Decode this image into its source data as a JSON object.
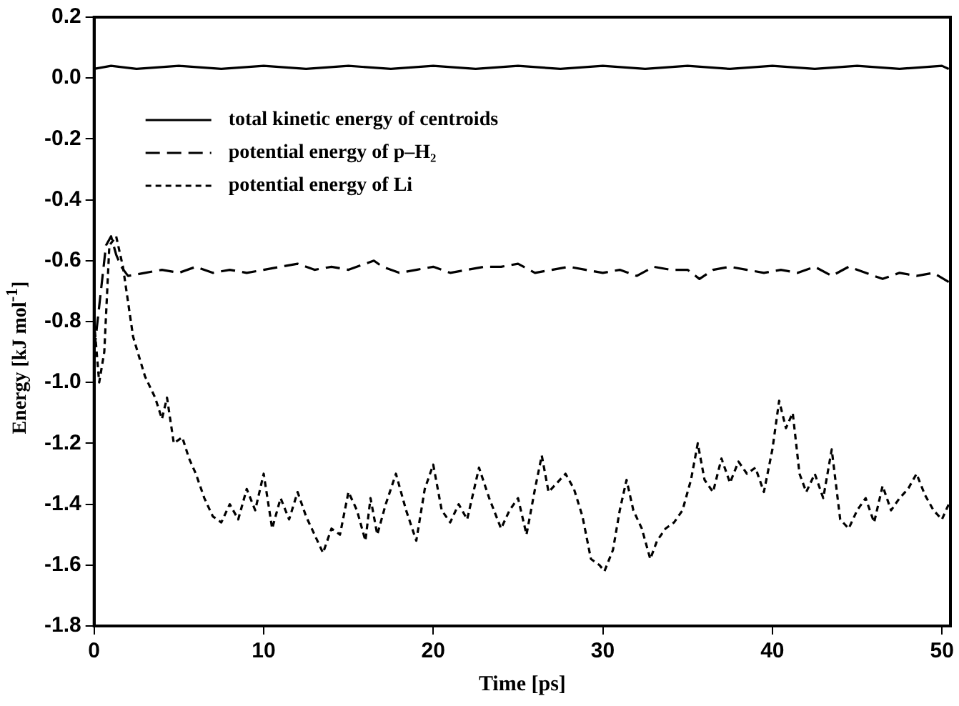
{
  "chart_data": {
    "type": "line",
    "xlabel": "Time [ps]",
    "ylabel": "Energy [kJ mol$^{-1}$]",
    "xlim": [
      0,
      50.5
    ],
    "xticks": [
      0,
      10,
      20,
      30,
      40,
      50
    ],
    "ylim": [
      -1.8,
      0.2
    ],
    "yticks": [
      {
        "value": 0.2,
        "label": "0.2"
      },
      {
        "value": 0,
        "label": "0.0"
      },
      {
        "value": -0.2,
        "label": "-0.2"
      },
      {
        "value": -0.4,
        "label": "-0.4"
      },
      {
        "value": -0.6,
        "label": "-0.6"
      },
      {
        "value": -0.8,
        "label": "-0.8"
      },
      {
        "value": -1,
        "label": "-1.0"
      },
      {
        "value": -1.2,
        "label": "-1.2"
      },
      {
        "value": -1.4,
        "label": "-1.4"
      },
      {
        "value": -1.6,
        "label": "-1.6"
      },
      {
        "value": -1.8,
        "label": "-1.8"
      }
    ],
    "grid": false,
    "legend": "top left",
    "marker": "none",
    "series": [
      {
        "name": "total kinetic energy of centroids",
        "color": "#000000",
        "line_style": "solid",
        "x": [
          0,
          1,
          2.5,
          5,
          7.5,
          10,
          12.5,
          15,
          17.5,
          20,
          22.5,
          25,
          27.5,
          30,
          32.5,
          35,
          37.5,
          40,
          42.5,
          45,
          47.5,
          50,
          50.4
        ],
        "values": [
          0.03,
          0.04,
          0.03,
          0.04,
          0.03,
          0.04,
          0.03,
          0.04,
          0.03,
          0.04,
          0.03,
          0.04,
          0.03,
          0.04,
          0.03,
          0.04,
          0.03,
          0.04,
          0.03,
          0.04,
          0.03,
          0.04,
          0.03
        ]
      },
      {
        "name": "potential energy of p–H₂",
        "color": "#000000",
        "line_style": "dashed",
        "x": [
          0,
          0.3,
          0.7,
          1,
          1.3,
          1.6,
          2,
          3,
          4,
          5,
          6,
          7,
          8,
          9,
          10,
          11,
          12,
          13,
          14,
          15,
          16,
          16.5,
          17,
          18,
          19,
          20,
          21,
          22,
          23,
          24,
          25,
          26,
          27,
          28,
          29,
          30,
          31,
          32,
          33,
          34,
          35,
          35.7,
          36.5,
          37.5,
          38.5,
          39.5,
          40.5,
          41.5,
          42.5,
          43.5,
          44.5,
          45.5,
          46.5,
          47.5,
          48.5,
          49.5,
          50.4
        ],
        "values": [
          -0.9,
          -0.75,
          -0.55,
          -0.52,
          -0.58,
          -0.62,
          -0.65,
          -0.64,
          -0.63,
          -0.64,
          -0.62,
          -0.64,
          -0.63,
          -0.64,
          -0.63,
          -0.62,
          -0.61,
          -0.63,
          -0.62,
          -0.63,
          -0.61,
          -0.6,
          -0.62,
          -0.64,
          -0.63,
          -0.62,
          -0.64,
          -0.63,
          -0.62,
          -0.62,
          -0.61,
          -0.64,
          -0.63,
          -0.62,
          -0.63,
          -0.64,
          -0.63,
          -0.65,
          -0.62,
          -0.63,
          -0.63,
          -0.66,
          -0.63,
          -0.62,
          -0.63,
          -0.64,
          -0.63,
          -0.64,
          -0.62,
          -0.65,
          -0.62,
          -0.64,
          -0.66,
          -0.64,
          -0.65,
          -0.64,
          -0.67
        ]
      },
      {
        "name": "potential energy of Li",
        "color": "#000000",
        "line_style": "dotted",
        "x": [
          0,
          0.3,
          0.6,
          0.9,
          1.3,
          1.7,
          2.3,
          3,
          3.6,
          4,
          4.3,
          4.7,
          5.2,
          5.6,
          6,
          6.5,
          7,
          7.5,
          8,
          8.5,
          9,
          9.5,
          10,
          10.5,
          11,
          11.5,
          12,
          12.5,
          13,
          13.5,
          14,
          14.5,
          15,
          15.5,
          16,
          16.3,
          16.7,
          17.2,
          17.8,
          18.4,
          19,
          19.5,
          20,
          20.5,
          21,
          21.5,
          22,
          22.7,
          23.3,
          24,
          24.5,
          25,
          25.5,
          26,
          26.4,
          26.8,
          27.3,
          27.8,
          28.3,
          28.8,
          29.3,
          29.8,
          30.1,
          30.6,
          31,
          31.4,
          31.8,
          32.3,
          32.8,
          33.2,
          33.7,
          34.2,
          34.7,
          35.2,
          35.6,
          36,
          36.5,
          37,
          37.5,
          38,
          38.5,
          39,
          39.5,
          40,
          40.4,
          40.8,
          41.2,
          41.6,
          42,
          42.5,
          43,
          43.5,
          44,
          44.5,
          45,
          45.5,
          46,
          46.5,
          47,
          47.5,
          48,
          48.5,
          49,
          49.5,
          50,
          50.4
        ],
        "values": [
          -0.8,
          -1.0,
          -0.9,
          -0.55,
          -0.52,
          -0.62,
          -0.85,
          -0.98,
          -1.05,
          -1.12,
          -1.05,
          -1.2,
          -1.18,
          -1.25,
          -1.3,
          -1.38,
          -1.44,
          -1.46,
          -1.4,
          -1.45,
          -1.35,
          -1.42,
          -1.3,
          -1.48,
          -1.38,
          -1.45,
          -1.36,
          -1.44,
          -1.5,
          -1.56,
          -1.48,
          -1.5,
          -1.36,
          -1.42,
          -1.52,
          -1.38,
          -1.5,
          -1.4,
          -1.3,
          -1.42,
          -1.52,
          -1.35,
          -1.27,
          -1.42,
          -1.46,
          -1.4,
          -1.45,
          -1.28,
          -1.38,
          -1.48,
          -1.42,
          -1.38,
          -1.5,
          -1.35,
          -1.24,
          -1.36,
          -1.33,
          -1.3,
          -1.35,
          -1.44,
          -1.58,
          -1.6,
          -1.62,
          -1.55,
          -1.42,
          -1.32,
          -1.42,
          -1.48,
          -1.58,
          -1.52,
          -1.48,
          -1.46,
          -1.42,
          -1.32,
          -1.2,
          -1.32,
          -1.36,
          -1.25,
          -1.33,
          -1.26,
          -1.3,
          -1.28,
          -1.36,
          -1.22,
          -1.06,
          -1.15,
          -1.1,
          -1.3,
          -1.36,
          -1.3,
          -1.38,
          -1.22,
          -1.45,
          -1.48,
          -1.42,
          -1.38,
          -1.46,
          -1.34,
          -1.42,
          -1.38,
          -1.35,
          -1.3,
          -1.37,
          -1.42,
          -1.45,
          -1.4
        ]
      }
    ]
  }
}
